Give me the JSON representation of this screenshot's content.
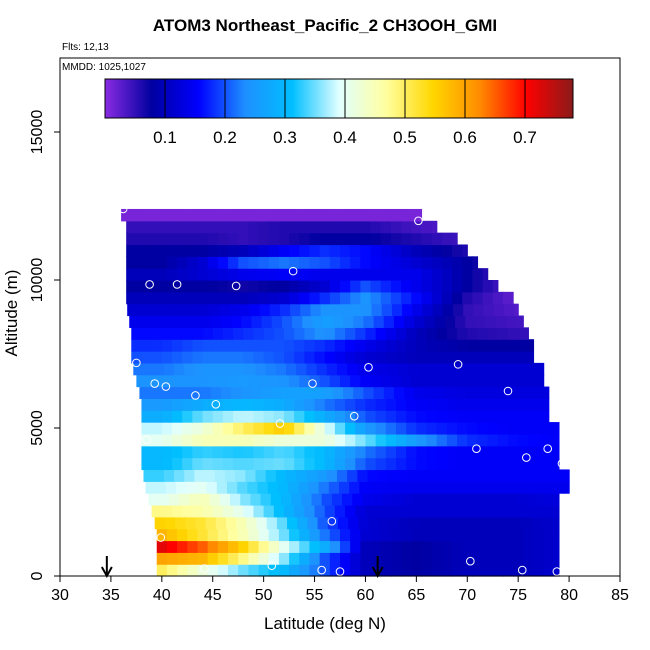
{
  "chart_data": {
    "type": "heatmap",
    "title": "ATOM3 Northeast_Pacific_2 CH3OOH_GMI",
    "flights_label": "Flts: 12,13",
    "dates_label": "MMDD: 1025,1027",
    "xlabel": "Latitude (deg N)",
    "ylabel": "Altitude (m)",
    "xlim": [
      30,
      85
    ],
    "ylim": [
      0,
      17500
    ],
    "x_ticks": [
      "30",
      "35",
      "40",
      "45",
      "50",
      "55",
      "60",
      "65",
      "70",
      "75",
      "80",
      "85"
    ],
    "y_ticks": [
      "0",
      "5000",
      "10000",
      "15000"
    ],
    "colorbar": {
      "range": [
        0,
        0.78
      ],
      "ticks": [
        "0.1",
        "0.2",
        "0.3",
        "0.4",
        "0.5",
        "0.6",
        "0.7"
      ],
      "colors": [
        "#8a2be2",
        "#0000a0",
        "#0000ff",
        "#1e90ff",
        "#00bfff",
        "#e0ffff",
        "#ffffa0",
        "#ffd700",
        "#ff8c00",
        "#ff0000",
        "#8b1a1a"
      ]
    },
    "field": {
      "altitude_rows_m": [
        200,
        600,
        1000,
        1400,
        1800,
        2200,
        2600,
        3000,
        3400,
        3800,
        4200,
        4600,
        5000,
        5400,
        5800,
        6200,
        6600,
        7000,
        7400,
        7800,
        8200,
        8600,
        9000,
        9400,
        9800,
        10200,
        10600,
        11000,
        11400,
        11800,
        12200
      ],
      "lat_range_per_row": [
        [
          39.5,
          79
        ],
        [
          39.5,
          79
        ],
        [
          39.5,
          79
        ],
        [
          39.5,
          79
        ],
        [
          39.3,
          79
        ],
        [
          39,
          79
        ],
        [
          38.7,
          79
        ],
        [
          38.4,
          80
        ],
        [
          38.2,
          80
        ],
        [
          38,
          79
        ],
        [
          38,
          79
        ],
        [
          38,
          79
        ],
        [
          38,
          79
        ],
        [
          38,
          78
        ],
        [
          38,
          78
        ],
        [
          37.8,
          78
        ],
        [
          37.5,
          77.5
        ],
        [
          37.2,
          77.5
        ],
        [
          37,
          76.5
        ],
        [
          37,
          76.5
        ],
        [
          37,
          76
        ],
        [
          36.8,
          75.5
        ],
        [
          36.6,
          75
        ],
        [
          36.5,
          74.5
        ],
        [
          36.5,
          73
        ],
        [
          36.5,
          72
        ],
        [
          36.5,
          71
        ],
        [
          36.5,
          70
        ],
        [
          36.5,
          69
        ],
        [
          36.5,
          67
        ],
        [
          36,
          65.5
        ]
      ],
      "profile_points_lat": [
        40,
        44,
        48,
        52,
        56,
        60,
        65,
        70,
        75,
        80
      ],
      "values": [
        [
          0.5,
          0.42,
          0.35,
          0.3,
          0.2,
          0.1,
          0.08,
          0.1,
          0.1,
          0.12
        ],
        [
          0.6,
          0.58,
          0.48,
          0.36,
          0.2,
          0.1,
          0.08,
          0.1,
          0.1,
          0.12
        ],
        [
          0.72,
          0.65,
          0.55,
          0.4,
          0.28,
          0.1,
          0.08,
          0.1,
          0.1,
          0.12
        ],
        [
          0.58,
          0.52,
          0.45,
          0.35,
          0.22,
          0.12,
          0.1,
          0.1,
          0.1,
          0.12
        ],
        [
          0.55,
          0.52,
          0.45,
          0.34,
          0.2,
          0.12,
          0.1,
          0.1,
          0.1,
          0.12
        ],
        [
          0.48,
          0.46,
          0.4,
          0.3,
          0.2,
          0.12,
          0.12,
          0.12,
          0.12,
          0.12
        ],
        [
          0.4,
          0.45,
          0.36,
          0.3,
          0.2,
          0.14,
          0.12,
          0.12,
          0.12,
          0.13
        ],
        [
          0.38,
          0.4,
          0.34,
          0.3,
          0.22,
          0.15,
          0.14,
          0.14,
          0.14,
          0.14
        ],
        [
          0.33,
          0.38,
          0.36,
          0.3,
          0.25,
          0.16,
          0.15,
          0.15,
          0.15,
          0.15
        ],
        [
          0.3,
          0.35,
          0.34,
          0.35,
          0.3,
          0.2,
          0.16,
          0.15,
          0.15,
          0.15
        ],
        [
          0.3,
          0.33,
          0.32,
          0.34,
          0.3,
          0.22,
          0.16,
          0.15,
          0.15,
          0.15
        ],
        [
          0.4,
          0.45,
          0.45,
          0.42,
          0.42,
          0.35,
          0.25,
          0.18,
          0.16,
          0.15
        ],
        [
          0.38,
          0.42,
          0.5,
          0.56,
          0.4,
          0.25,
          0.18,
          0.16,
          0.15,
          0.15
        ],
        [
          0.28,
          0.35,
          0.38,
          0.36,
          0.28,
          0.2,
          0.16,
          0.15,
          0.15,
          0.15
        ],
        [
          0.25,
          0.28,
          0.3,
          0.28,
          0.22,
          0.18,
          0.15,
          0.14,
          0.14,
          0.14
        ],
        [
          0.22,
          0.22,
          0.24,
          0.26,
          0.26,
          0.2,
          0.14,
          0.13,
          0.13,
          0.13
        ],
        [
          0.24,
          0.24,
          0.25,
          0.24,
          0.2,
          0.15,
          0.12,
          0.12,
          0.12,
          0.12
        ],
        [
          0.22,
          0.24,
          0.24,
          0.22,
          0.18,
          0.14,
          0.12,
          0.12,
          0.12,
          0.12
        ],
        [
          0.2,
          0.22,
          0.22,
          0.2,
          0.16,
          0.12,
          0.1,
          0.1,
          0.1,
          0.1
        ],
        [
          0.18,
          0.2,
          0.2,
          0.2,
          0.18,
          0.14,
          0.1,
          0.08,
          0.08,
          0.08
        ],
        [
          0.16,
          0.16,
          0.18,
          0.2,
          0.24,
          0.18,
          0.1,
          0.06,
          0.05,
          0.05
        ],
        [
          0.14,
          0.14,
          0.16,
          0.2,
          0.26,
          0.22,
          0.12,
          0.05,
          0.04,
          0.04
        ],
        [
          0.12,
          0.12,
          0.14,
          0.18,
          0.24,
          0.24,
          0.14,
          0.05,
          0.03,
          0.03
        ],
        [
          0.1,
          0.1,
          0.1,
          0.12,
          0.18,
          0.24,
          0.16,
          0.06,
          0.02,
          0.02
        ],
        [
          0.08,
          0.08,
          0.07,
          0.08,
          0.12,
          0.2,
          0.14,
          0.08,
          0.02,
          0.02
        ],
        [
          0.1,
          0.12,
          0.14,
          0.15,
          0.14,
          0.14,
          0.14,
          0.08,
          0.02,
          0.02
        ],
        [
          0.08,
          0.12,
          0.2,
          0.22,
          0.2,
          0.16,
          0.12,
          0.08,
          0.02,
          0.02
        ],
        [
          0.08,
          0.08,
          0.1,
          0.15,
          0.18,
          0.16,
          0.1,
          0.06,
          0.02,
          0.02
        ],
        [
          0.06,
          0.06,
          0.05,
          0.06,
          0.08,
          0.08,
          0.06,
          0.04,
          0.02,
          0.02
        ],
        [
          0.05,
          0.05,
          0.05,
          0.06,
          0.06,
          0.06,
          0.04,
          0.03,
          0.02,
          0.02
        ],
        [
          0.01,
          0.01,
          0.01,
          0.01,
          0.01,
          0.01,
          0.01,
          0.01,
          0.01,
          0.01
        ]
      ]
    },
    "observations": [
      {
        "lat": 36.2,
        "alt": 12400
      },
      {
        "lat": 65.2,
        "alt": 12000
      },
      {
        "lat": 72.5,
        "alt": 10300
      },
      {
        "lat": 38.8,
        "alt": 9850
      },
      {
        "lat": 41.5,
        "alt": 9850
      },
      {
        "lat": 47.3,
        "alt": 9800
      },
      {
        "lat": 52.9,
        "alt": 10300
      },
      {
        "lat": 37.5,
        "alt": 7200
      },
      {
        "lat": 39.3,
        "alt": 6500
      },
      {
        "lat": 40.4,
        "alt": 6400
      },
      {
        "lat": 43.3,
        "alt": 6100
      },
      {
        "lat": 45.3,
        "alt": 5800
      },
      {
        "lat": 54.8,
        "alt": 6500
      },
      {
        "lat": 60.3,
        "alt": 7050
      },
      {
        "lat": 69.1,
        "alt": 7150
      },
      {
        "lat": 74.0,
        "alt": 6250
      },
      {
        "lat": 79.3,
        "alt": 7400
      },
      {
        "lat": 51.6,
        "alt": 5150
      },
      {
        "lat": 58.9,
        "alt": 5400
      },
      {
        "lat": 38.5,
        "alt": 4600
      },
      {
        "lat": 70.9,
        "alt": 4300
      },
      {
        "lat": 75.8,
        "alt": 4000
      },
      {
        "lat": 77.9,
        "alt": 4300
      },
      {
        "lat": 79.3,
        "alt": 3800
      },
      {
        "lat": 56.7,
        "alt": 1850
      },
      {
        "lat": 39.9,
        "alt": 1300
      },
      {
        "lat": 44.2,
        "alt": 250
      },
      {
        "lat": 50.8,
        "alt": 350
      },
      {
        "lat": 55.7,
        "alt": 200
      },
      {
        "lat": 57.5,
        "alt": 150
      },
      {
        "lat": 70.3,
        "alt": 500
      },
      {
        "lat": 75.4,
        "alt": 200
      },
      {
        "lat": 78.8,
        "alt": 150
      }
    ],
    "arrows_lat": [
      34.6,
      61.2
    ]
  }
}
